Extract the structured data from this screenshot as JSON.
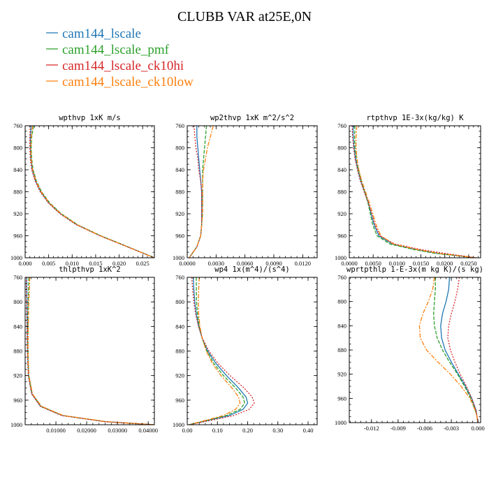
{
  "figure": {
    "title": "CLUBB VAR at25E,0N",
    "legend": [
      {
        "label": "cam144_lscale",
        "color": "#1f77b4"
      },
      {
        "label": "cam144_lscale_pmf",
        "color": "#2ca02c"
      },
      {
        "label": "cam144_lscale_ck10hi",
        "color": "#d62728"
      },
      {
        "label": "cam144_lscale_ck10low",
        "color": "#ff7f0e"
      }
    ]
  },
  "chart_data": [
    {
      "type": "line",
      "title": "wpthvp  1xK m/s",
      "xlim": [
        0,
        0.0275
      ],
      "ylim": [
        760,
        1000
      ],
      "y_inverted": true,
      "xticks": [
        0,
        0.005,
        0.01,
        0.015,
        0.02,
        0.025
      ],
      "xtick_labels": [
        "0.000",
        "0.005",
        "0.010",
        "0.015",
        "0.020",
        "0.025"
      ],
      "yticks": [
        760,
        800,
        840,
        880,
        920,
        960,
        1000
      ],
      "ytick_labels": [
        "760",
        "800",
        "840",
        "880",
        "920",
        "960",
        "1000"
      ],
      "series": [
        {
          "color": "#1f77b4",
          "dash": "",
          "y": [
            760,
            780,
            800,
            820,
            840,
            860,
            880,
            900,
            920,
            940,
            960,
            980,
            1000
          ],
          "x": [
            0.0013,
            0.0011,
            0.0011,
            0.0012,
            0.0015,
            0.0022,
            0.0033,
            0.005,
            0.0075,
            0.011,
            0.016,
            0.0218,
            0.0275
          ]
        },
        {
          "color": "#2ca02c",
          "dash": "5,2",
          "y": [
            760,
            780,
            800,
            820,
            840,
            860,
            880,
            900,
            920,
            940,
            960,
            980,
            1000
          ],
          "x": [
            0.0018,
            0.0014,
            0.0013,
            0.0014,
            0.0017,
            0.0024,
            0.0035,
            0.0052,
            0.0077,
            0.0112,
            0.0161,
            0.0219,
            0.0275
          ]
        },
        {
          "color": "#d62728",
          "dash": "2,2",
          "y": [
            760,
            780,
            800,
            820,
            840,
            860,
            880,
            900,
            920,
            940,
            960,
            980,
            1000
          ],
          "x": [
            0.0011,
            0.001,
            0.001,
            0.0011,
            0.0014,
            0.0021,
            0.0032,
            0.0049,
            0.0074,
            0.0109,
            0.0159,
            0.0217,
            0.0275
          ]
        },
        {
          "color": "#ff7f0e",
          "dash": "6,2,2,2",
          "y": [
            760,
            780,
            800,
            820,
            840,
            860,
            880,
            900,
            920,
            940,
            960,
            980,
            1000
          ],
          "x": [
            0.0016,
            0.0013,
            0.0012,
            0.0013,
            0.0016,
            0.0023,
            0.0034,
            0.0051,
            0.0076,
            0.0111,
            0.016,
            0.0218,
            0.0275
          ]
        }
      ]
    },
    {
      "type": "line",
      "title": "wp2thvp  1xK m^2/s^2",
      "xlim": [
        0,
        0.0135
      ],
      "ylim": [
        760,
        1000
      ],
      "y_inverted": true,
      "xticks": [
        0,
        0.003,
        0.006,
        0.009,
        0.012
      ],
      "xtick_labels": [
        "0.0000",
        "0.0030",
        "0.0060",
        "0.0090",
        "0.0120"
      ],
      "yticks": [
        760,
        800,
        840,
        880,
        920,
        960,
        1000
      ],
      "ytick_labels": [
        "760",
        "800",
        "840",
        "880",
        "920",
        "960",
        "1000"
      ],
      "series": [
        {
          "color": "#1f77b4",
          "dash": "",
          "y": [
            760,
            780,
            800,
            820,
            840,
            860,
            880,
            900,
            920,
            940,
            960,
            980,
            1000
          ],
          "x": [
            0.001,
            0.001,
            0.0011,
            0.0012,
            0.0013,
            0.0014,
            0.0015,
            0.0015,
            0.0015,
            0.0015,
            0.0014,
            0.001,
            0.0002
          ]
        },
        {
          "color": "#2ca02c",
          "dash": "5,2",
          "y": [
            760,
            780,
            800,
            820,
            840,
            860,
            880,
            900,
            920,
            940,
            960,
            980,
            1000
          ],
          "x": [
            0.002,
            0.0019,
            0.0018,
            0.0017,
            0.0016,
            0.0016,
            0.0016,
            0.0016,
            0.0016,
            0.0015,
            0.0014,
            0.001,
            0.0002
          ]
        },
        {
          "color": "#d62728",
          "dash": "2,2",
          "y": [
            760,
            780,
            800,
            820,
            840,
            860,
            880,
            900,
            920,
            940,
            960,
            980,
            1000
          ],
          "x": [
            0.0007,
            0.0008,
            0.0009,
            0.0011,
            0.0012,
            0.0014,
            0.0015,
            0.0015,
            0.0015,
            0.0015,
            0.0014,
            0.001,
            0.0002
          ]
        },
        {
          "color": "#ff7f0e",
          "dash": "6,2,2,2",
          "y": [
            760,
            780,
            800,
            820,
            840,
            860,
            880,
            900,
            920,
            940,
            960,
            980,
            1000
          ],
          "x": [
            0.0027,
            0.0024,
            0.0021,
            0.0019,
            0.0017,
            0.0016,
            0.0016,
            0.0016,
            0.0016,
            0.0015,
            0.0014,
            0.001,
            0.0002
          ]
        }
      ]
    },
    {
      "type": "line",
      "title": "rtpthvp  1E-3x(kg/kg) K",
      "xlim": [
        0,
        0.0275
      ],
      "ylim": [
        760,
        1000
      ],
      "y_inverted": true,
      "xticks": [
        0,
        0.005,
        0.01,
        0.015,
        0.02,
        0.025
      ],
      "xtick_labels": [
        "0.0000",
        "0.0050",
        "0.0100",
        "0.0150",
        "0.0200",
        "0.0250"
      ],
      "yticks": [
        760,
        800,
        840,
        880,
        920,
        960,
        1000
      ],
      "ytick_labels": [
        "760",
        "800",
        "840",
        "880",
        "920",
        "960",
        "1000"
      ],
      "series": [
        {
          "color": "#1f77b4",
          "dash": "",
          "y": [
            760,
            780,
            800,
            820,
            840,
            860,
            880,
            900,
            920,
            940,
            960,
            975,
            985,
            992,
            1000
          ],
          "x": [
            0.0008,
            0.0008,
            0.001,
            0.0013,
            0.0018,
            0.0024,
            0.0032,
            0.004,
            0.0046,
            0.0052,
            0.0062,
            0.009,
            0.014,
            0.0185,
            0.0265
          ]
        },
        {
          "color": "#2ca02c",
          "dash": "5,2",
          "y": [
            760,
            780,
            800,
            820,
            840,
            860,
            880,
            900,
            920,
            940,
            960,
            975,
            985,
            992,
            1000
          ],
          "x": [
            0.0012,
            0.0011,
            0.0012,
            0.0015,
            0.0019,
            0.0025,
            0.0032,
            0.0039,
            0.0044,
            0.0049,
            0.0058,
            0.0085,
            0.0135,
            0.018,
            0.0265
          ]
        },
        {
          "color": "#d62728",
          "dash": "2,2",
          "y": [
            760,
            780,
            800,
            820,
            840,
            860,
            880,
            900,
            920,
            940,
            960,
            975,
            985,
            992,
            1000
          ],
          "x": [
            0.0006,
            0.0007,
            0.0009,
            0.0012,
            0.0017,
            0.0023,
            0.0031,
            0.004,
            0.0047,
            0.0054,
            0.0064,
            0.0095,
            0.015,
            0.02,
            0.0265
          ]
        },
        {
          "color": "#ff7f0e",
          "dash": "6,2,2,2",
          "y": [
            760,
            780,
            800,
            820,
            840,
            860,
            880,
            900,
            920,
            940,
            960,
            975,
            985,
            992,
            1000
          ],
          "x": [
            0.0016,
            0.0014,
            0.0014,
            0.0016,
            0.002,
            0.0026,
            0.0034,
            0.0042,
            0.0049,
            0.0056,
            0.0066,
            0.0092,
            0.0142,
            0.0188,
            0.0265
          ]
        }
      ]
    },
    {
      "type": "line",
      "title": "thlpthvp  1xK^2",
      "xlim": [
        0,
        0.042
      ],
      "ylim": [
        760,
        1000
      ],
      "y_inverted": true,
      "xticks": [
        0.01,
        0.02,
        0.03,
        0.04
      ],
      "xtick_labels": [
        "0.01000",
        "0.02000",
        "0.03000",
        "0.04000"
      ],
      "yticks": [
        760,
        800,
        840,
        880,
        920,
        960,
        1000
      ],
      "ytick_labels": [
        "760",
        "800",
        "840",
        "880",
        "920",
        "960",
        "1000"
      ],
      "series": [
        {
          "color": "#1f77b4",
          "dash": "",
          "y": [
            760,
            800,
            840,
            880,
            920,
            950,
            970,
            985,
            995,
            1000
          ],
          "x": [
            0.0005,
            0.0006,
            0.0007,
            0.0008,
            0.0011,
            0.0022,
            0.005,
            0.012,
            0.026,
            0.042
          ]
        },
        {
          "color": "#2ca02c",
          "dash": "5,2",
          "y": [
            760,
            800,
            840,
            880,
            920,
            950,
            970,
            985,
            995,
            1000
          ],
          "x": [
            0.0012,
            0.001,
            0.0009,
            0.0009,
            0.0012,
            0.0023,
            0.0052,
            0.0122,
            0.0262,
            0.042
          ]
        },
        {
          "color": "#d62728",
          "dash": "2,2",
          "y": [
            760,
            800,
            840,
            880,
            920,
            950,
            970,
            985,
            995,
            1000
          ],
          "x": [
            0.0004,
            0.0005,
            0.0006,
            0.0007,
            0.001,
            0.0021,
            0.0049,
            0.0118,
            0.0258,
            0.042
          ]
        },
        {
          "color": "#ff7f0e",
          "dash": "6,2,2,2",
          "y": [
            760,
            800,
            840,
            880,
            920,
            950,
            970,
            985,
            995,
            1000
          ],
          "x": [
            0.0015,
            0.0012,
            0.001,
            0.0009,
            0.0012,
            0.0024,
            0.0053,
            0.0124,
            0.0264,
            0.042
          ]
        }
      ]
    },
    {
      "type": "line",
      "title": "wp4  1x(m^4)/(s^4)",
      "xlim": [
        0,
        0.43
      ],
      "ylim": [
        760,
        1000
      ],
      "y_inverted": true,
      "xticks": [
        0,
        0.1,
        0.2,
        0.3,
        0.4
      ],
      "xtick_labels": [
        "0.00",
        "0.10",
        "0.20",
        "0.30",
        "0.40"
      ],
      "yticks": [
        760,
        800,
        840,
        880,
        920,
        960,
        1000
      ],
      "ytick_labels": [
        "760",
        "800",
        "840",
        "880",
        "920",
        "960",
        "1000"
      ],
      "series": [
        {
          "color": "#1f77b4",
          "dash": "",
          "y": [
            760,
            780,
            800,
            820,
            840,
            860,
            880,
            900,
            920,
            940,
            955,
            965,
            975,
            985,
            993,
            1000
          ],
          "x": [
            0.02,
            0.022,
            0.025,
            0.03,
            0.038,
            0.05,
            0.068,
            0.095,
            0.13,
            0.17,
            0.195,
            0.2,
            0.185,
            0.14,
            0.07,
            0.005
          ]
        },
        {
          "color": "#2ca02c",
          "dash": "5,2",
          "y": [
            760,
            780,
            800,
            820,
            840,
            860,
            880,
            900,
            920,
            940,
            955,
            965,
            975,
            985,
            993,
            1000
          ],
          "x": [
            0.03,
            0.03,
            0.031,
            0.034,
            0.04,
            0.05,
            0.065,
            0.088,
            0.12,
            0.16,
            0.185,
            0.19,
            0.175,
            0.13,
            0.065,
            0.005
          ]
        },
        {
          "color": "#d62728",
          "dash": "2,2",
          "y": [
            760,
            780,
            800,
            820,
            840,
            860,
            880,
            900,
            920,
            940,
            955,
            965,
            975,
            985,
            993,
            1000
          ],
          "x": [
            0.015,
            0.018,
            0.022,
            0.028,
            0.037,
            0.051,
            0.072,
            0.102,
            0.142,
            0.188,
            0.215,
            0.222,
            0.205,
            0.155,
            0.078,
            0.005
          ]
        },
        {
          "color": "#ff7f0e",
          "dash": "6,2,2,2",
          "y": [
            760,
            780,
            800,
            820,
            840,
            860,
            880,
            900,
            920,
            940,
            955,
            965,
            975,
            985,
            993,
            1000
          ],
          "x": [
            0.04,
            0.038,
            0.037,
            0.038,
            0.042,
            0.05,
            0.063,
            0.083,
            0.112,
            0.148,
            0.17,
            0.175,
            0.16,
            0.12,
            0.06,
            0.005
          ]
        }
      ]
    },
    {
      "type": "line",
      "title": "wprtpthlp  1-E-3x(m kg K)/(s kg)",
      "xlim": [
        -0.0145,
        0.0003
      ],
      "ylim": [
        760,
        1000
      ],
      "y_inverted": true,
      "xticks": [
        -0.012,
        -0.009,
        -0.006,
        -0.003,
        0.0
      ],
      "xtick_labels": [
        "-0.012",
        "-0.009",
        "-0.006",
        "-0.003",
        "0.000"
      ],
      "yticks": [
        760,
        800,
        840,
        880,
        920,
        960,
        1000
      ],
      "ytick_labels": [
        "760",
        "800",
        "840",
        "880",
        "920",
        "960",
        "1000"
      ],
      "series": [
        {
          "color": "#1f77b4",
          "dash": "",
          "y": [
            760,
            780,
            800,
            820,
            840,
            860,
            880,
            900,
            920,
            940,
            960,
            980,
            990,
            1000
          ],
          "x": [
            -0.0032,
            -0.0033,
            -0.0036,
            -0.004,
            -0.0042,
            -0.0041,
            -0.0037,
            -0.003,
            -0.0022,
            -0.0014,
            -0.0007,
            -0.0002,
            -0.0001,
            0.0
          ]
        },
        {
          "color": "#2ca02c",
          "dash": "5,2",
          "y": [
            760,
            780,
            800,
            820,
            840,
            860,
            880,
            900,
            920,
            940,
            960,
            980,
            990,
            1000
          ],
          "x": [
            -0.0048,
            -0.0048,
            -0.0049,
            -0.005,
            -0.0049,
            -0.0046,
            -0.004,
            -0.0032,
            -0.0023,
            -0.0015,
            -0.0008,
            -0.0003,
            -0.0001,
            0.0
          ]
        },
        {
          "color": "#d62728",
          "dash": "2,2",
          "y": [
            760,
            780,
            800,
            820,
            840,
            860,
            880,
            900,
            920,
            940,
            960,
            980,
            990,
            1000
          ],
          "x": [
            -0.0021,
            -0.0023,
            -0.0026,
            -0.003,
            -0.0033,
            -0.0034,
            -0.0031,
            -0.0026,
            -0.002,
            -0.0013,
            -0.0007,
            -0.0002,
            -0.0001,
            0.0
          ]
        },
        {
          "color": "#ff7f0e",
          "dash": "6,2,2,2",
          "y": [
            760,
            780,
            800,
            820,
            840,
            860,
            880,
            900,
            920,
            940,
            960,
            980,
            990,
            1000
          ],
          "x": [
            -0.0049,
            -0.0051,
            -0.0056,
            -0.0062,
            -0.0066,
            -0.0065,
            -0.0058,
            -0.0045,
            -0.0031,
            -0.0019,
            -0.0009,
            -0.0003,
            -0.0001,
            0.0
          ]
        }
      ]
    }
  ]
}
